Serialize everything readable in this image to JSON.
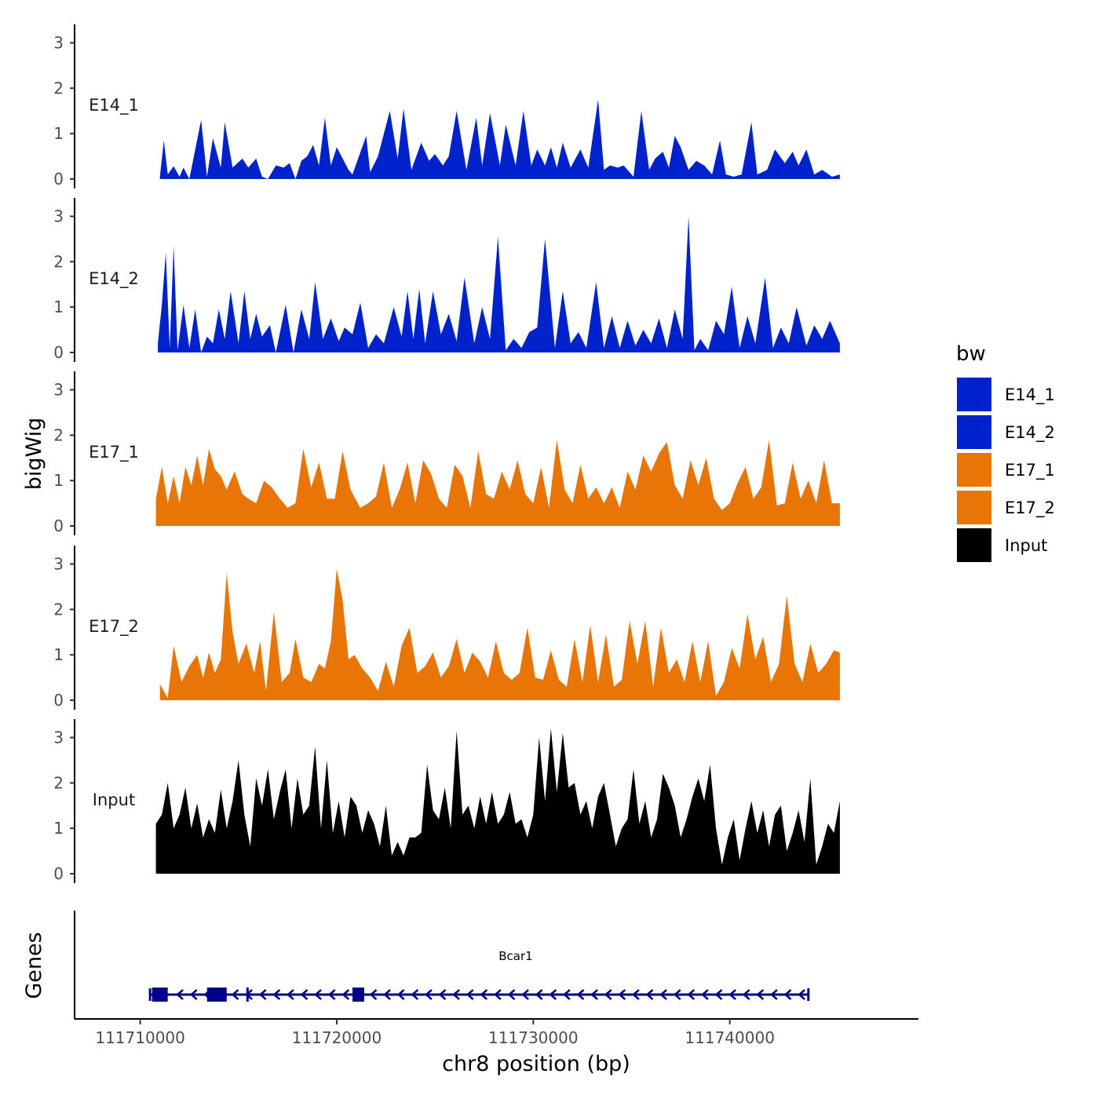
{
  "chart_data": {
    "type": "area",
    "y_axis_title": "bigWig",
    "x_axis_title": "chr8 position (bp)",
    "genes_axis_title": "Genes",
    "xlim": [
      111706700,
      111749600
    ],
    "x_ticks": [
      111710000,
      111720000,
      111730000,
      111740000
    ],
    "x_tick_labels": [
      "111710000",
      "111720000",
      "111730000",
      "111740000"
    ],
    "ylim": [
      0,
      3.2
    ],
    "y_ticks": [
      0,
      1,
      2,
      3
    ],
    "y_tick_labels": [
      "0",
      "1",
      "2",
      "3"
    ],
    "legend": {
      "title": "bw",
      "position": "right",
      "entries": [
        {
          "label": "E14_1",
          "color": "#0022CC"
        },
        {
          "label": "E14_2",
          "color": "#0022CC"
        },
        {
          "label": "E17_1",
          "color": "#E87506"
        },
        {
          "label": "E17_2",
          "color": "#E87506"
        },
        {
          "label": "Input",
          "color": "#000000"
        }
      ]
    },
    "series": [
      {
        "name": "E14_1",
        "color": "#0022CC",
        "x": [
          111711,
          111711.2,
          111711.4,
          111711.7,
          111712,
          111712.2,
          111712.5,
          111713.1,
          111713.4,
          111713.7,
          111714.1,
          111714.3,
          111714.7,
          111715.2,
          111715.5,
          111715.9,
          111716.2,
          111716.5,
          111716.9,
          111717.3,
          111717.6,
          111717.9,
          111718.2,
          111718.5,
          111718.8,
          111719.1,
          111719.4,
          111719.7,
          111720,
          111720.3,
          111720.6,
          111720.8,
          111721.5,
          111721.7,
          111722.1,
          111722.7,
          111723.1,
          111723.4,
          111723.8,
          111724.3,
          111724.7,
          111725,
          111725.4,
          111725.7,
          111726.1,
          111726.6,
          111727.1,
          111727.4,
          111727.8,
          111728.3,
          111728.6,
          111729.1,
          111729.5,
          111729.9,
          111730.2,
          111730.6,
          111730.9,
          111731.2,
          111731.5,
          111731.9,
          111732.4,
          111732.8,
          111733.3,
          111733.6,
          111733.9,
          111734.3,
          111734.6,
          111735.1,
          111735.5,
          111735.9,
          111736.2,
          111736.6,
          111736.9,
          111737.2,
          111737.5,
          111737.9,
          111738.3,
          111738.7,
          111739.1,
          111739.5,
          111739.8,
          111740.2,
          111740.6,
          111741.1,
          111741.4,
          111741.9,
          111742.3,
          111742.8,
          111743.2,
          111743.5,
          111743.9,
          111744.3,
          111744.7,
          111745.2,
          111745.6
        ],
        "y": [
          0.05,
          0.85,
          0.1,
          0.28,
          0.05,
          0.25,
          0,
          1.3,
          0.05,
          0.9,
          0.25,
          1.25,
          0.25,
          0.45,
          0.25,
          0.45,
          0.05,
          0,
          0.3,
          0.25,
          0.35,
          0,
          0.4,
          0.5,
          0.75,
          0.3,
          1.35,
          0.3,
          0.7,
          0.45,
          0.2,
          0.1,
          0.95,
          0.15,
          0.5,
          1.5,
          0.45,
          1.55,
          0.2,
          0.8,
          0.4,
          0.55,
          0.3,
          0.5,
          1.5,
          0.2,
          1.35,
          0.3,
          1.45,
          0.3,
          1.2,
          0.3,
          1.5,
          0.3,
          0.65,
          0.3,
          0.7,
          0.25,
          0.8,
          0.25,
          0.65,
          0.25,
          1.75,
          0.2,
          0.3,
          0.25,
          0.3,
          0.05,
          1.5,
          0.2,
          0.45,
          0.6,
          0.25,
          0.95,
          0.7,
          0.2,
          0.4,
          0.3,
          0.1,
          0.85,
          0.1,
          0.05,
          0.1,
          1.25,
          0.1,
          0.2,
          0.65,
          0.35,
          0.6,
          0.3,
          0.65,
          0.1,
          0.2,
          0.05,
          0.1
        ]
      },
      {
        "name": "E14_2",
        "color": "#0022CC",
        "x": [
          111710.9,
          111711.1,
          111711.3,
          111711.5,
          111711.7,
          111711.9,
          111712.2,
          111712.5,
          111712.8,
          111713.1,
          111713.4,
          111713.7,
          111714,
          111714.3,
          111714.6,
          111715,
          111715.3,
          111715.6,
          111715.9,
          111716.2,
          111716.6,
          111716.9,
          111717.4,
          111717.8,
          111718.2,
          111718.6,
          111718.9,
          111719.3,
          111719.7,
          111720.1,
          111720.4,
          111720.8,
          111721.2,
          111721.6,
          111722,
          111722.4,
          111722.9,
          111723.3,
          111723.6,
          111723.9,
          111724.2,
          111724.5,
          111724.9,
          111725.3,
          111725.7,
          111726.1,
          111726.5,
          111727,
          111727.4,
          111727.8,
          111728.2,
          111728.6,
          111729,
          111729.4,
          111729.8,
          111730.2,
          111730.6,
          111731.1,
          111731.5,
          111731.9,
          111732.3,
          111732.7,
          111733.2,
          111733.6,
          111734,
          111734.4,
          111734.8,
          111735.2,
          111735.6,
          111736,
          111736.4,
          111736.8,
          111737.2,
          111737.6,
          111737.9,
          111738.2,
          111738.5,
          111738.9,
          111739.3,
          111739.7,
          111740.1,
          111740.5,
          111740.9,
          111741.3,
          111741.8,
          111742.2,
          111742.6,
          111743,
          111743.4,
          111743.9,
          111744.3,
          111744.7,
          111745.1,
          111745.6
        ],
        "y": [
          0.2,
          1.05,
          2.2,
          0.1,
          2.35,
          0.05,
          1.05,
          0.1,
          0.95,
          0,
          0.35,
          0.2,
          0.95,
          0.3,
          1.35,
          0.2,
          1.35,
          0.3,
          0.85,
          0.35,
          0.6,
          0,
          1.05,
          0,
          0.95,
          0.3,
          1.55,
          0.3,
          0.75,
          0.25,
          0.55,
          0.4,
          1.1,
          0.1,
          0.4,
          0.2,
          1.0,
          0.35,
          1.35,
          0.3,
          1.4,
          0.2,
          1.35,
          0.4,
          0.85,
          0.25,
          1.65,
          0.2,
          1.0,
          0.3,
          2.55,
          0.05,
          0.3,
          0.1,
          0.45,
          0.55,
          2.5,
          0.1,
          1.35,
          0.2,
          0.45,
          0.1,
          1.55,
          0.1,
          0.8,
          0.1,
          0.7,
          0.15,
          0.5,
          0.2,
          0.75,
          0.1,
          0.95,
          0.3,
          3.0,
          0.05,
          0.3,
          0.05,
          0.7,
          0.4,
          1.45,
          0.1,
          0.8,
          0.2,
          1.65,
          0.1,
          0.55,
          0.2,
          1.0,
          0.15,
          0.6,
          0.3,
          0.7,
          0.2
        ]
      },
      {
        "name": "E17_1",
        "color": "#E87506",
        "x": [
          111710.8,
          111711.1,
          111711.4,
          111711.7,
          111712,
          111712.3,
          111712.6,
          111712.9,
          111713.2,
          111713.5,
          111713.8,
          111714.1,
          111714.4,
          111714.8,
          111715.2,
          111715.5,
          111715.9,
          111716.3,
          111716.7,
          111717.1,
          111717.5,
          111717.9,
          111718.3,
          111718.7,
          111719.1,
          111719.5,
          111719.9,
          111720.3,
          111720.7,
          111721.2,
          111721.6,
          111722,
          111722.4,
          111722.8,
          111723.2,
          111723.6,
          111724,
          111724.4,
          111724.8,
          111725.2,
          111725.6,
          111726,
          111726.4,
          111726.8,
          111727.2,
          111727.6,
          111728,
          111728.4,
          111728.8,
          111729.2,
          111729.6,
          111730,
          111730.4,
          111730.8,
          111731.2,
          111731.6,
          111732,
          111732.4,
          111732.8,
          111733.2,
          111733.6,
          111734,
          111734.4,
          111734.8,
          111735.2,
          111735.6,
          111736,
          111736.4,
          111736.8,
          111737.2,
          111737.6,
          111738,
          111738.4,
          111738.8,
          111739.2,
          111739.6,
          111740,
          111740.4,
          111740.8,
          111741.2,
          111741.6,
          111742,
          111742.4,
          111742.8,
          111743.2,
          111743.6,
          111744,
          111744.4,
          111744.8,
          111745.2,
          111745.6
        ],
        "y": [
          0.6,
          1.3,
          0.5,
          1.1,
          0.5,
          1.3,
          0.9,
          1.55,
          0.9,
          1.7,
          1.25,
          1.1,
          0.8,
          1.2,
          0.7,
          0.6,
          0.5,
          1.0,
          0.85,
          0.6,
          0.4,
          0.5,
          1.7,
          0.85,
          1.4,
          0.6,
          0.6,
          1.65,
          0.8,
          0.4,
          0.5,
          0.65,
          1.4,
          0.4,
          0.8,
          1.4,
          0.5,
          1.45,
          1.15,
          0.6,
          0.4,
          1.35,
          1.1,
          0.4,
          1.65,
          0.7,
          0.6,
          1.2,
          0.8,
          1.45,
          0.7,
          0.5,
          1.3,
          0.4,
          1.9,
          0.8,
          0.5,
          1.35,
          0.6,
          0.85,
          0.5,
          0.85,
          0.4,
          1.2,
          0.8,
          1.55,
          1.2,
          1.6,
          1.85,
          0.9,
          0.6,
          1.45,
          0.9,
          1.5,
          0.6,
          0.35,
          0.5,
          0.95,
          1.3,
          0.6,
          0.85,
          1.9,
          0.45,
          0.5,
          1.4,
          0.6,
          1.0,
          0.5,
          1.45,
          0.5,
          0.5
        ]
      },
      {
        "name": "E17_2",
        "color": "#E87506",
        "x": [
          111711,
          111711.4,
          111711.7,
          111712.1,
          111712.5,
          111712.9,
          111713.2,
          111713.5,
          111713.8,
          111714.1,
          111714.4,
          111714.7,
          111715,
          111715.4,
          111715.8,
          111716.1,
          111716.4,
          111716.8,
          111717.2,
          111717.6,
          111717.9,
          111718.3,
          111718.7,
          111719.1,
          111719.4,
          111719.7,
          111720,
          111720.3,
          111720.6,
          111720.9,
          111721.3,
          111721.7,
          111722.1,
          111722.5,
          111722.9,
          111723.3,
          111723.7,
          111724.1,
          111724.5,
          111724.9,
          111725.3,
          111725.7,
          111726.1,
          111726.5,
          111726.9,
          111727.3,
          111727.7,
          111728.1,
          111728.5,
          111728.9,
          111729.3,
          111729.7,
          111730.1,
          111730.5,
          111730.9,
          111731.3,
          111731.7,
          111732.1,
          111732.5,
          111732.9,
          111733.3,
          111733.7,
          111734.1,
          111734.5,
          111734.9,
          111735.3,
          111735.7,
          111736.1,
          111736.5,
          111736.9,
          111737.3,
          111737.7,
          111738.1,
          111738.5,
          111738.9,
          111739.3,
          111739.7,
          111740.1,
          111740.5,
          111740.9,
          111741.3,
          111741.7,
          111742.1,
          111742.5,
          111742.9,
          111743.3,
          111743.7,
          111744.1,
          111744.5,
          111744.9,
          111745.3,
          111745.6
        ],
        "y": [
          0.35,
          0.05,
          1.2,
          0.4,
          0.75,
          1.0,
          0.5,
          1.05,
          0.6,
          0.9,
          2.8,
          1.5,
          0.8,
          1.25,
          0.6,
          1.3,
          0.2,
          1.95,
          0.4,
          0.6,
          1.35,
          0.5,
          0.4,
          0.8,
          0.7,
          1.3,
          2.9,
          2.2,
          0.9,
          1.0,
          0.7,
          0.5,
          0.2,
          0.85,
          0.3,
          1.2,
          1.6,
          0.6,
          0.75,
          1.05,
          0.5,
          0.75,
          1.35,
          0.6,
          1.05,
          0.85,
          0.5,
          1.3,
          0.6,
          0.45,
          0.6,
          1.6,
          0.5,
          0.45,
          1.1,
          0.45,
          0.3,
          1.35,
          0.4,
          1.65,
          0.4,
          1.45,
          0.3,
          0.45,
          1.75,
          0.8,
          1.75,
          0.3,
          1.6,
          0.6,
          0.9,
          0.4,
          1.3,
          0.4,
          1.3,
          0.1,
          0.4,
          1.15,
          0.7,
          1.9,
          0.9,
          1.4,
          0.4,
          0.8,
          2.3,
          0.8,
          0.4,
          1.25,
          0.6,
          0.8,
          1.1,
          1.05
        ]
      },
      {
        "name": "Input",
        "color": "#000000",
        "x": [
          111710.8,
          111711.1,
          111711.4,
          111711.7,
          111712,
          111712.3,
          111712.6,
          111712.9,
          111713.2,
          111713.5,
          111713.8,
          111714.1,
          111714.4,
          111714.7,
          111715,
          111715.3,
          111715.6,
          111715.9,
          111716.2,
          111716.5,
          111716.8,
          111717.1,
          111717.4,
          111717.7,
          111718,
          111718.3,
          111718.6,
          111718.9,
          111719.2,
          111719.5,
          111719.8,
          111720.1,
          111720.4,
          111720.7,
          111721,
          111721.3,
          111721.6,
          111721.9,
          111722.2,
          111722.5,
          111722.8,
          111723.1,
          111723.4,
          111723.7,
          111724,
          111724.3,
          111724.6,
          111724.9,
          111725.2,
          111725.5,
          111725.8,
          111726.1,
          111726.4,
          111726.7,
          111727,
          111727.3,
          111727.6,
          111727.9,
          111728.2,
          111728.5,
          111728.8,
          111729.1,
          111729.4,
          111729.7,
          111730,
          111730.3,
          111730.6,
          111730.9,
          111731.2,
          111731.5,
          111731.8,
          111732.1,
          111732.4,
          111732.7,
          111733,
          111733.3,
          111733.6,
          111733.9,
          111734.2,
          111734.5,
          111734.8,
          111735.1,
          111735.4,
          111735.7,
          111736,
          111736.3,
          111736.6,
          111736.9,
          111737.2,
          111737.5,
          111737.8,
          111738.1,
          111738.4,
          111738.7,
          111739,
          111739.3,
          111739.6,
          111739.9,
          111740.2,
          111740.5,
          111740.8,
          111741.1,
          111741.4,
          111741.7,
          111742,
          111742.3,
          111742.6,
          111742.9,
          111743.2,
          111743.5,
          111743.8,
          111744.1,
          111744.4,
          111744.7,
          111745,
          111745.3,
          111745.6
        ],
        "y": [
          1.1,
          1.3,
          2.0,
          1.0,
          1.3,
          1.9,
          1.0,
          1.55,
          0.8,
          1.2,
          0.9,
          1.85,
          1.0,
          1.6,
          2.5,
          1.3,
          0.6,
          2.1,
          1.5,
          2.3,
          1.2,
          1.8,
          2.3,
          1.0,
          2.1,
          1.3,
          1.5,
          2.8,
          1.0,
          2.5,
          0.9,
          1.6,
          0.8,
          1.7,
          1.5,
          0.9,
          1.4,
          1.1,
          0.6,
          1.5,
          0.4,
          0.7,
          0.4,
          0.8,
          0.8,
          0.9,
          2.4,
          1.4,
          1.2,
          1.9,
          1.0,
          3.15,
          1.3,
          1.5,
          1.0,
          1.7,
          1.1,
          1.8,
          1.1,
          1.3,
          1.8,
          1.1,
          1.2,
          0.8,
          1.3,
          3.0,
          1.6,
          3.2,
          1.8,
          3.1,
          1.9,
          2.0,
          1.3,
          1.6,
          1.0,
          1.7,
          2.0,
          1.3,
          0.6,
          1.0,
          1.2,
          2.3,
          1.1,
          1.6,
          0.8,
          1.2,
          2.2,
          1.9,
          1.5,
          0.8,
          1.2,
          1.7,
          2.1,
          1.6,
          2.4,
          1.0,
          0.2,
          0.8,
          1.2,
          0.3,
          1.0,
          1.6,
          0.9,
          1.4,
          0.6,
          1.3,
          1.5,
          0.5,
          0.9,
          1.4,
          0.7,
          2.1,
          0.2,
          0.6,
          1.1,
          0.9,
          1.6
        ]
      }
    ],
    "genes": [
      {
        "name": "Bcar1",
        "strand": "-",
        "start": 111710500,
        "end": 111744000,
        "exons": [
          [
            111710600,
            111711400
          ],
          [
            111713400,
            111714400
          ],
          [
            111715400,
            111715500
          ],
          [
            111720800,
            111721400
          ]
        ]
      }
    ]
  }
}
